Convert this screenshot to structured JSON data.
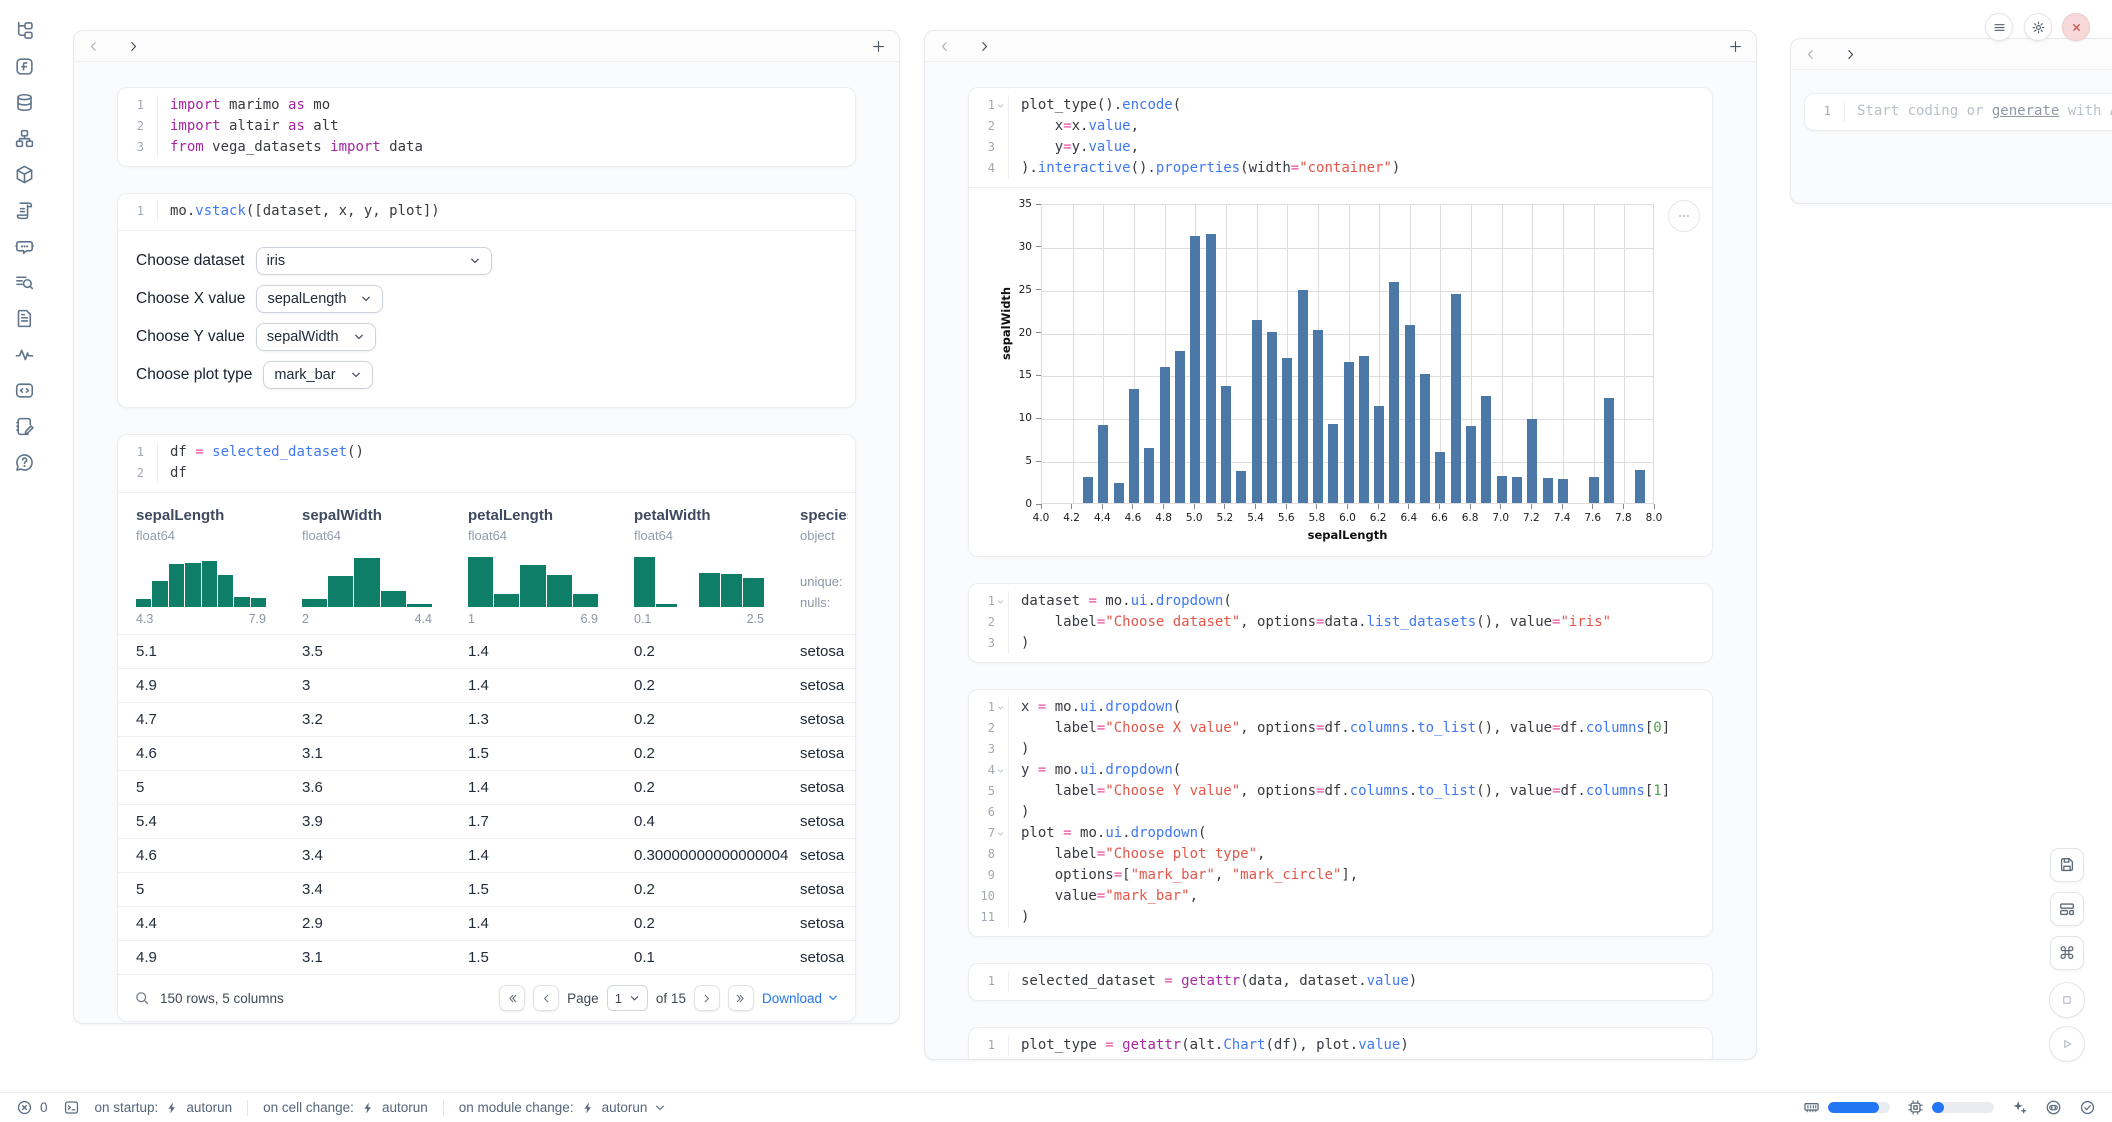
{
  "sidebar": {
    "icons": [
      "file-tree",
      "functions",
      "datasources",
      "dependencies",
      "packages",
      "snippets",
      "chat",
      "logs",
      "documentation",
      "tracing",
      "code",
      "scratchpad",
      "help"
    ]
  },
  "left_panel": {
    "cells": [
      {
        "id": "imports",
        "lines": [
          "import marimo as mo",
          "import altair as alt",
          "from vega_datasets import data"
        ]
      },
      {
        "id": "vstack",
        "lines": [
          "mo.vstack([dataset, x, y, plot])"
        ],
        "output": "dropdowns"
      },
      {
        "id": "df",
        "lines": [
          "df = selected_dataset()",
          "df"
        ],
        "output": "table"
      }
    ],
    "dropdowns": [
      {
        "label": "Choose dataset",
        "value": "iris"
      },
      {
        "label": "Choose X value",
        "value": "sepalLength"
      },
      {
        "label": "Choose Y value",
        "value": "sepalWidth"
      },
      {
        "label": "Choose plot type",
        "value": "mark_bar"
      }
    ],
    "table": {
      "columns": [
        {
          "name": "sepalLength",
          "dtype": "float64",
          "hist_min": "4.3",
          "hist_max": "7.9",
          "hist": [
            0.15,
            0.5,
            0.83,
            0.85,
            0.88,
            0.62,
            0.2,
            0.17
          ]
        },
        {
          "name": "sepalWidth",
          "dtype": "float64",
          "hist_min": "2",
          "hist_max": "4.4",
          "hist": [
            0.16,
            0.6,
            0.95,
            0.3,
            0.06
          ]
        },
        {
          "name": "petalLength",
          "dtype": "float64",
          "hist_min": "1",
          "hist_max": "6.9",
          "hist": [
            0.97,
            0.25,
            0.8,
            0.62,
            0.25
          ]
        },
        {
          "name": "petalWidth",
          "dtype": "float64",
          "hist_min": "0.1",
          "hist_max": "2.5",
          "hist": [
            0.97,
            0.06,
            0,
            0.66,
            0.64,
            0.56
          ]
        },
        {
          "name": "species",
          "dtype": "object",
          "stats": [
            "unique:",
            "nulls:"
          ]
        }
      ],
      "rows": [
        [
          "5.1",
          "3.5",
          "1.4",
          "0.2",
          "setosa"
        ],
        [
          "4.9",
          "3",
          "1.4",
          "0.2",
          "setosa"
        ],
        [
          "4.7",
          "3.2",
          "1.3",
          "0.2",
          "setosa"
        ],
        [
          "4.6",
          "3.1",
          "1.5",
          "0.2",
          "setosa"
        ],
        [
          "5",
          "3.6",
          "1.4",
          "0.2",
          "setosa"
        ],
        [
          "5.4",
          "3.9",
          "1.7",
          "0.4",
          "setosa"
        ],
        [
          "4.6",
          "3.4",
          "1.4",
          "0.30000000000000004",
          "setosa"
        ],
        [
          "5",
          "3.4",
          "1.5",
          "0.2",
          "setosa"
        ],
        [
          "4.4",
          "2.9",
          "1.4",
          "0.2",
          "setosa"
        ],
        [
          "4.9",
          "3.1",
          "1.5",
          "0.1",
          "setosa"
        ]
      ],
      "footer": {
        "summary": "150 rows, 5 columns",
        "page_label": "Page",
        "page_value": "1",
        "pages_label": "of 15",
        "download": "Download"
      }
    }
  },
  "middle_panel": {
    "cells": [
      {
        "id": "plot",
        "folds": [
          1
        ],
        "output": "chart",
        "lines": [
          "plot_type().encode(",
          "    x=x.value,",
          "    y=y.value,",
          ").interactive().properties(width=\"container\")"
        ]
      },
      {
        "id": "dataset",
        "folds": [
          1
        ],
        "lines": [
          "dataset = mo.ui.dropdown(",
          "    label=\"Choose dataset\", options=data.list_datasets(), value=\"iris\"",
          ")"
        ]
      },
      {
        "id": "xyplot",
        "folds": [
          1,
          4,
          7
        ],
        "lines": [
          "x = mo.ui.dropdown(",
          "    label=\"Choose X value\", options=df.columns.to_list(), value=df.columns[0]",
          ")",
          "y = mo.ui.dropdown(",
          "    label=\"Choose Y value\", options=df.columns.to_list(), value=df.columns[1]",
          ")",
          "plot = mo.ui.dropdown(",
          "    label=\"Choose plot type\",",
          "    options=[\"mark_bar\", \"mark_circle\"],",
          "    value=\"mark_bar\",",
          ")"
        ]
      },
      {
        "id": "selected",
        "lines": [
          "selected_dataset = getattr(data, dataset.value)"
        ]
      },
      {
        "id": "plottype",
        "lines": [
          "plot_type = getattr(alt.Chart(df), plot.value)"
        ]
      }
    ]
  },
  "chart_data": {
    "type": "bar",
    "xlabel": "sepalLength",
    "ylabel": "sepalWidth",
    "xlim": [
      4.0,
      8.0
    ],
    "ylim": [
      0,
      35
    ],
    "grid": true,
    "bar_color": "#4c78a8",
    "x_ticks": [
      "4.0",
      "4.2",
      "4.4",
      "4.6",
      "4.8",
      "5.0",
      "5.2",
      "5.4",
      "5.6",
      "5.8",
      "6.0",
      "6.2",
      "6.4",
      "6.6",
      "6.8",
      "7.0",
      "7.2",
      "7.4",
      "7.6",
      "7.8",
      "8.0"
    ],
    "y_ticks": [
      "0",
      "5",
      "10",
      "15",
      "20",
      "25",
      "30",
      "35"
    ],
    "x": [
      4.3,
      4.4,
      4.5,
      4.6,
      4.7,
      4.8,
      4.9,
      5.0,
      5.1,
      5.2,
      5.3,
      5.4,
      5.5,
      5.6,
      5.7,
      5.8,
      5.9,
      6.0,
      6.1,
      6.2,
      6.3,
      6.4,
      6.5,
      6.6,
      6.7,
      6.8,
      6.9,
      7.0,
      7.1,
      7.2,
      7.3,
      7.4,
      7.6,
      7.7,
      7.9
    ],
    "values": [
      3.0,
      9.1,
      2.3,
      13.3,
      6.4,
      15.9,
      17.7,
      31.2,
      31.4,
      13.7,
      3.7,
      21.4,
      20.0,
      16.9,
      24.9,
      20.2,
      9.2,
      16.4,
      17.1,
      11.3,
      25.8,
      20.8,
      15.0,
      6.0,
      24.4,
      9.0,
      12.5,
      3.2,
      3.0,
      9.8,
      2.9,
      2.8,
      3.0,
      12.2,
      3.8
    ]
  },
  "right_panel": {
    "line_no": "1",
    "placeholder_prefix": "Start coding or ",
    "placeholder_link": "generate",
    "placeholder_suffix": " with AI"
  },
  "statusbar": {
    "error_count": "0",
    "groups": [
      {
        "label": "on startup:",
        "value": "autorun",
        "chevron": false
      },
      {
        "label": "on cell change:",
        "value": "autorun",
        "chevron": false
      },
      {
        "label": "on module change:",
        "value": "autorun",
        "chevron": true
      }
    ],
    "ram_pct": 82,
    "cpu_pct": 20
  },
  "colors": {
    "accent_blue": "#2276f3",
    "chart_bar_blue": "#4c78a8",
    "histogram_teal": "#0f7e68",
    "link_blue": "#2477e6",
    "close_red": "#d35151"
  }
}
